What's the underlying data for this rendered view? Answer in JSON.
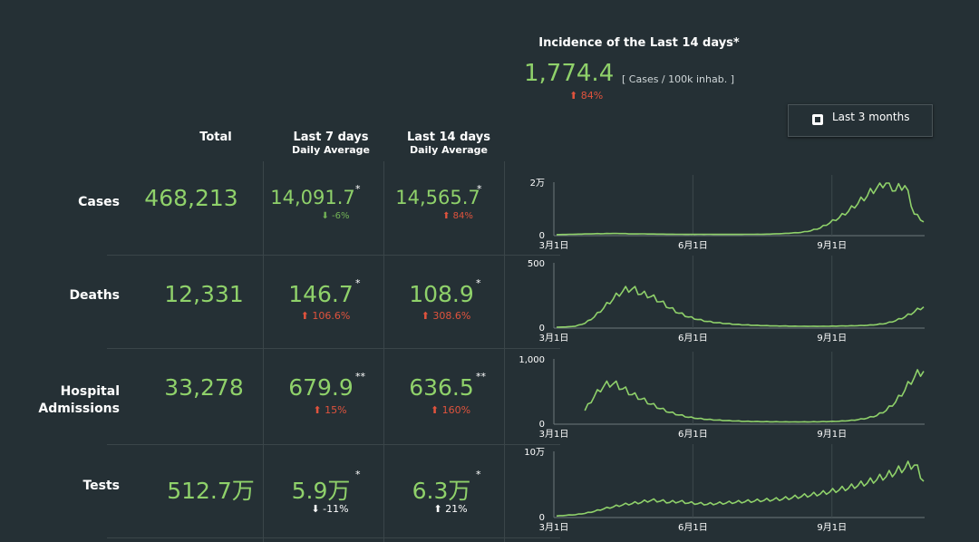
{
  "incidence": {
    "title": "Incidence of the Last 14 days*",
    "value": "1,774.4",
    "unit": "[ Cases / 100k inhab. ]",
    "change": "84%",
    "change_dir": "up"
  },
  "range_toggle": {
    "label": "Last 3 months"
  },
  "columns": {
    "total": "Total",
    "last7_line1": "Last 7 days",
    "last7_line2": "Daily Average",
    "last14_line1": "Last 14 days",
    "last14_line2": "Daily Average"
  },
  "rows": [
    {
      "label": "Cases",
      "total": "468,213",
      "last7": "14,091.7",
      "last7_mark": "*",
      "last7_change": "-6%",
      "last7_dir": "down",
      "last14": "14,565.7",
      "last14_mark": "*",
      "last14_change": "84%",
      "last14_dir": "up"
    },
    {
      "label": "Deaths",
      "total": "12,331",
      "last7": "146.7",
      "last7_mark": "*",
      "last7_change": "106.6%",
      "last7_dir": "up",
      "last14": "108.9",
      "last14_mark": "*",
      "last14_change": "308.6%",
      "last14_dir": "up"
    },
    {
      "label_line1": "Hospital",
      "label_line2": "Admissions",
      "total": "33,278",
      "last7": "679.9",
      "last7_mark": "**",
      "last7_change": "15%",
      "last7_dir": "up",
      "last14": "636.5",
      "last14_mark": "**",
      "last14_change": "160%",
      "last14_dir": "up"
    },
    {
      "label": "Tests",
      "total": "512.7万",
      "last7": "5.9万",
      "last7_mark": "*",
      "last7_change": "-11%",
      "last7_dir": "down",
      "last14": "6.3万",
      "last14_mark": "*",
      "last14_change": "21%",
      "last14_dir": "up"
    }
  ],
  "colors": {
    "line": "#8fd16a",
    "up": "#e0533d",
    "down_green": "#73b356",
    "background": "#253035"
  },
  "chart_data": [
    {
      "type": "line",
      "title": "",
      "series": [
        {
          "name": "",
          "values": [
            50,
            120,
            200,
            300,
            380,
            420,
            500,
            450,
            300,
            350,
            280,
            230,
            200,
            180,
            150,
            160,
            170,
            150,
            140,
            150,
            160,
            180,
            200,
            300,
            450,
            650,
            900,
            1500,
            2600,
            4500,
            6500,
            9000,
            12000,
            15000,
            18000,
            20000,
            17000,
            19000,
            8000,
            5000
          ]
        }
      ],
      "xticks": [
        "3月1日",
        "6月1日",
        "9月1日"
      ],
      "yticks": [
        "0",
        "2万"
      ],
      "ylim": [
        0,
        20000
      ]
    },
    {
      "type": "line",
      "title": "",
      "series": [
        {
          "name": "",
          "values": [
            0,
            2,
            8,
            30,
            80,
            150,
            220,
            280,
            300,
            260,
            240,
            200,
            150,
            110,
            80,
            60,
            45,
            35,
            28,
            22,
            18,
            15,
            12,
            10,
            9,
            8,
            7,
            7,
            7,
            8,
            9,
            10,
            12,
            15,
            20,
            30,
            50,
            80,
            120,
            160
          ]
        }
      ],
      "xticks": [
        "3月1日",
        "6月1日",
        "9月1日"
      ],
      "yticks": [
        "0",
        "500"
      ],
      "ylim": [
        0,
        500
      ]
    },
    {
      "type": "line",
      "title": "",
      "series": [
        {
          "name": "",
          "values": [
            null,
            null,
            null,
            200,
            420,
            580,
            620,
            540,
            450,
            380,
            300,
            230,
            170,
            130,
            95,
            75,
            60,
            50,
            42,
            36,
            30,
            27,
            25,
            23,
            22,
            21,
            21,
            22,
            24,
            27,
            32,
            40,
            55,
            80,
            120,
            200,
            330,
            520,
            720,
            820
          ]
        }
      ],
      "xticks": [
        "3月1日",
        "6月1日",
        "9月1日"
      ],
      "yticks": [
        "0",
        "1,000"
      ],
      "ylim": [
        0,
        1000
      ]
    },
    {
      "type": "line",
      "title": "",
      "series": [
        {
          "name": "",
          "values": [
            1000,
            2000,
            3000,
            5000,
            8000,
            12000,
            15000,
            18000,
            20000,
            22000,
            25000,
            24000,
            22000,
            23000,
            21000,
            20000,
            19000,
            20000,
            21000,
            22000,
            23000,
            24000,
            25000,
            26000,
            27000,
            29000,
            31000,
            33000,
            35000,
            38000,
            41000,
            44000,
            48000,
            52000,
            57000,
            62000,
            68000,
            75000,
            80000,
            55000
          ]
        }
      ],
      "xticks": [
        "3月1日",
        "6月1日",
        "9月1日"
      ],
      "yticks": [
        "0",
        "10万"
      ],
      "ylim": [
        0,
        100000
      ]
    }
  ]
}
